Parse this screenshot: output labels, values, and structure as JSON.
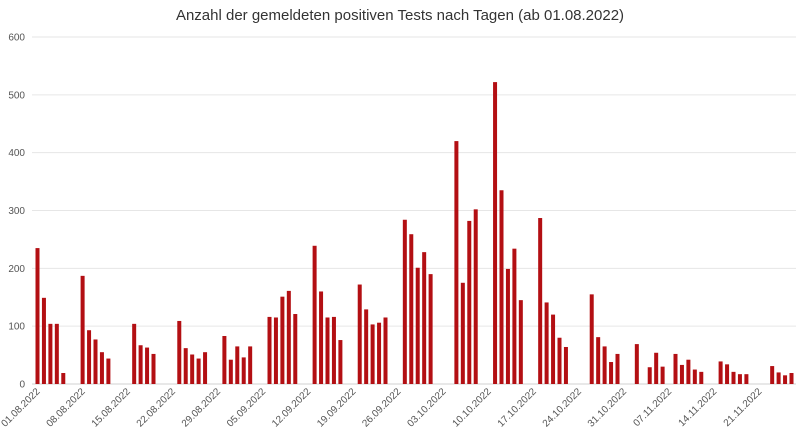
{
  "chart_data": {
    "type": "bar",
    "title": "Anzahl der gemeldeten positiven Tests nach Tagen (ab 01.08.2022)",
    "xlabel": "",
    "ylabel": "",
    "ylim": [
      0,
      600
    ],
    "yticks": [
      0,
      100,
      200,
      300,
      400,
      500,
      600
    ],
    "grid": true,
    "bar_color": "#b30f13",
    "x_tick_labels": [
      "01.08.2022",
      "08.08.2022",
      "15.08.2022",
      "22.08.2022",
      "29.08.2022",
      "05.09.2022",
      "12.09.2022",
      "19.09.2022",
      "26.09.2022",
      "03.10.2022",
      "10.10.2022",
      "17.10.2022",
      "24.10.2022",
      "31.10.2022",
      "07.11.2022",
      "14.11.2022",
      "21.11.2022"
    ],
    "values": [
      235,
      149,
      104,
      104,
      19,
      0,
      0,
      187,
      93,
      77,
      55,
      44,
      0,
      0,
      0,
      104,
      67,
      63,
      52,
      0,
      0,
      0,
      109,
      62,
      51,
      44,
      55,
      0,
      0,
      83,
      42,
      65,
      46,
      65,
      0,
      0,
      116,
      115,
      151,
      161,
      121,
      0,
      0,
      239,
      160,
      115,
      116,
      76,
      0,
      0,
      172,
      129,
      103,
      106,
      115,
      0,
      0,
      284,
      259,
      201,
      228,
      190,
      0,
      0,
      0,
      420,
      175,
      282,
      302,
      0,
      0,
      522,
      335,
      199,
      234,
      145,
      0,
      0,
      287,
      141,
      120,
      80,
      64,
      0,
      0,
      0,
      155,
      81,
      65,
      38,
      52,
      0,
      0,
      69,
      0,
      29,
      54,
      30,
      0,
      52,
      33,
      42,
      25,
      21,
      0,
      0,
      39,
      34,
      21,
      17,
      17,
      0,
      0,
      0,
      31,
      20,
      15,
      19
    ]
  }
}
